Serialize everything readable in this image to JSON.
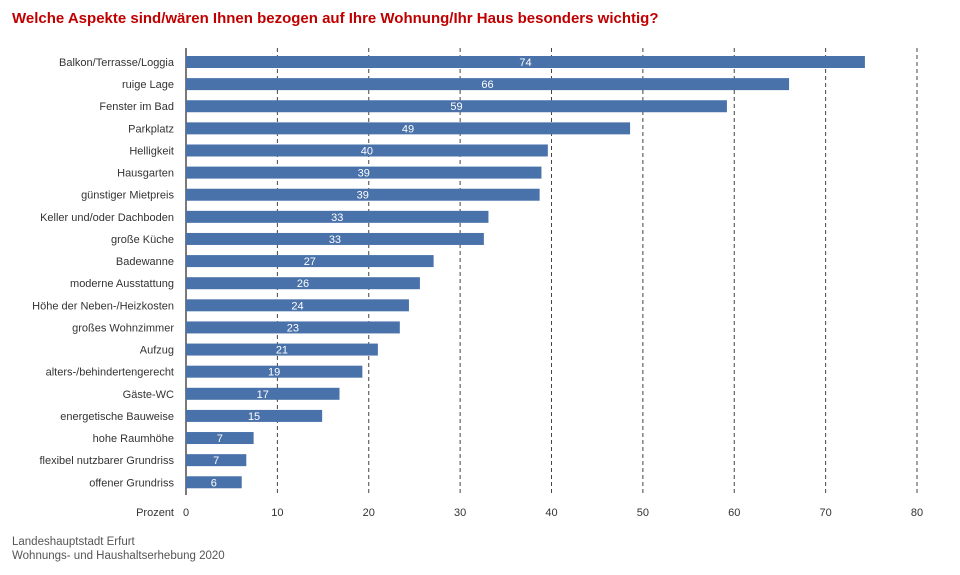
{
  "title": "Welche Aspekte sind/wären Ihnen bezogen auf Ihre Wohnung/Ihr Haus besonders wichtig?",
  "source": {
    "line1": "Landeshauptstadt Erfurt",
    "line2": "Wohnungs- und Haushaltserhebung 2020"
  },
  "colors": {
    "bar": "#4a72aa",
    "title": "#c00000",
    "grid": "#444444"
  },
  "chart_data": {
    "type": "bar",
    "orientation": "horizontal",
    "categories": [
      "Balkon/Terrasse/Loggia",
      "ruige Lage",
      "Fenster im Bad",
      "Parkplatz",
      "Helligkeit",
      "Hausgarten",
      "günstiger Mietpreis",
      "Keller und/oder Dachboden",
      "große Küche",
      "Badewanne",
      "moderne Ausstattung",
      "Höhe der Neben-/Heizkosten",
      "großes Wohnzimmer",
      "Aufzug",
      "alters-/behindertengerecht",
      "Gäste-WC",
      "energetische Bauweise",
      "hohe Raumhöhe",
      "flexibel nutzbarer Grundriss",
      "offener Grundriss"
    ],
    "values": [
      74.3,
      66.0,
      59.2,
      48.6,
      39.6,
      38.9,
      38.7,
      33.1,
      32.6,
      27.1,
      25.6,
      24.4,
      23.4,
      21.0,
      19.3,
      16.8,
      14.9,
      7.4,
      6.6,
      6.1
    ],
    "value_labels": [
      "74",
      "66",
      "59",
      "49",
      "40",
      "39",
      "39",
      "33",
      "33",
      "27",
      "26",
      "24",
      "23",
      "21",
      "19",
      "17",
      "15",
      "7",
      "7",
      "6"
    ],
    "xlabel": "Prozent",
    "xlim": [
      0,
      80
    ],
    "xticks": [
      0,
      10,
      20,
      30,
      40,
      50,
      60,
      70,
      80
    ],
    "grid": "vertical dashed"
  }
}
